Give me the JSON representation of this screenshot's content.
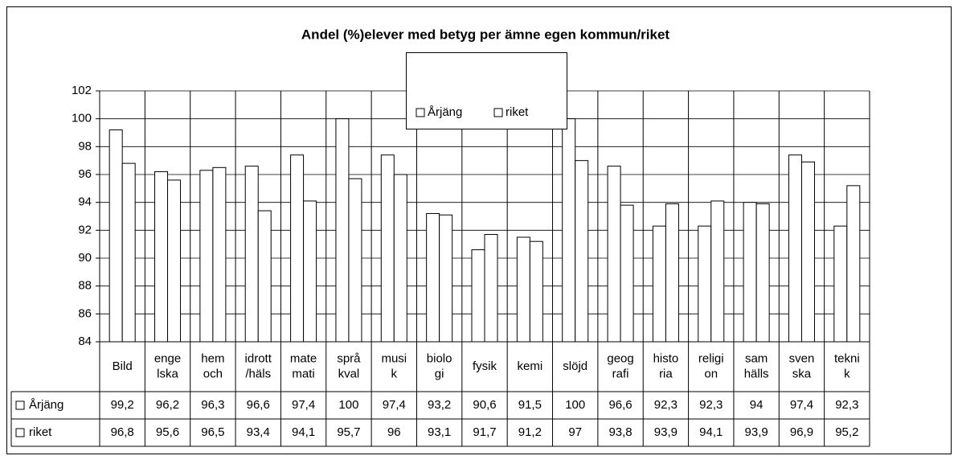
{
  "chart_data": {
    "type": "bar",
    "title": "Andel (%)elever med betyg per ämne egen kommun/riket",
    "categories": [
      [
        "Bild"
      ],
      [
        "enge",
        "lska"
      ],
      [
        "hem",
        "och"
      ],
      [
        "idrott",
        "/häls"
      ],
      [
        "mate",
        "mati"
      ],
      [
        "språ",
        "kval"
      ],
      [
        "musi",
        "k"
      ],
      [
        "biolo",
        "gi"
      ],
      [
        "fysik"
      ],
      [
        "kemi"
      ],
      [
        "slöjd"
      ],
      [
        "geog",
        "rafi"
      ],
      [
        "histo",
        "ria"
      ],
      [
        "religi",
        "on"
      ],
      [
        "sam",
        "hälls"
      ],
      [
        "sven",
        "ska"
      ],
      [
        "tekni",
        "k"
      ]
    ],
    "series": [
      {
        "name": "Årjäng",
        "color": "#ffffff",
        "values": [
          99.2,
          96.2,
          96.3,
          96.6,
          97.4,
          100,
          97.4,
          93.2,
          90.6,
          91.5,
          100,
          96.6,
          92.3,
          92.3,
          94,
          97.4,
          92.3
        ],
        "value_labels": [
          "99,2",
          "96,2",
          "96,3",
          "96,6",
          "97,4",
          "100",
          "97,4",
          "93,2",
          "90,6",
          "91,5",
          "100",
          "96,6",
          "92,3",
          "92,3",
          "94",
          "97,4",
          "92,3"
        ]
      },
      {
        "name": "riket",
        "color": "#ffffff",
        "values": [
          96.8,
          95.6,
          96.5,
          93.4,
          94.1,
          95.7,
          96,
          93.1,
          91.7,
          91.2,
          97,
          93.8,
          93.9,
          94.1,
          93.9,
          96.9,
          95.2
        ],
        "value_labels": [
          "96,8",
          "95,6",
          "96,5",
          "93,4",
          "94,1",
          "95,7",
          "96",
          "93,1",
          "91,7",
          "91,2",
          "97",
          "93,8",
          "93,9",
          "94,1",
          "93,9",
          "96,9",
          "95,2"
        ]
      }
    ],
    "ylim": [
      84,
      102
    ],
    "yticks": [
      84,
      86,
      88,
      90,
      92,
      94,
      96,
      98,
      100,
      102
    ],
    "grid": true
  }
}
